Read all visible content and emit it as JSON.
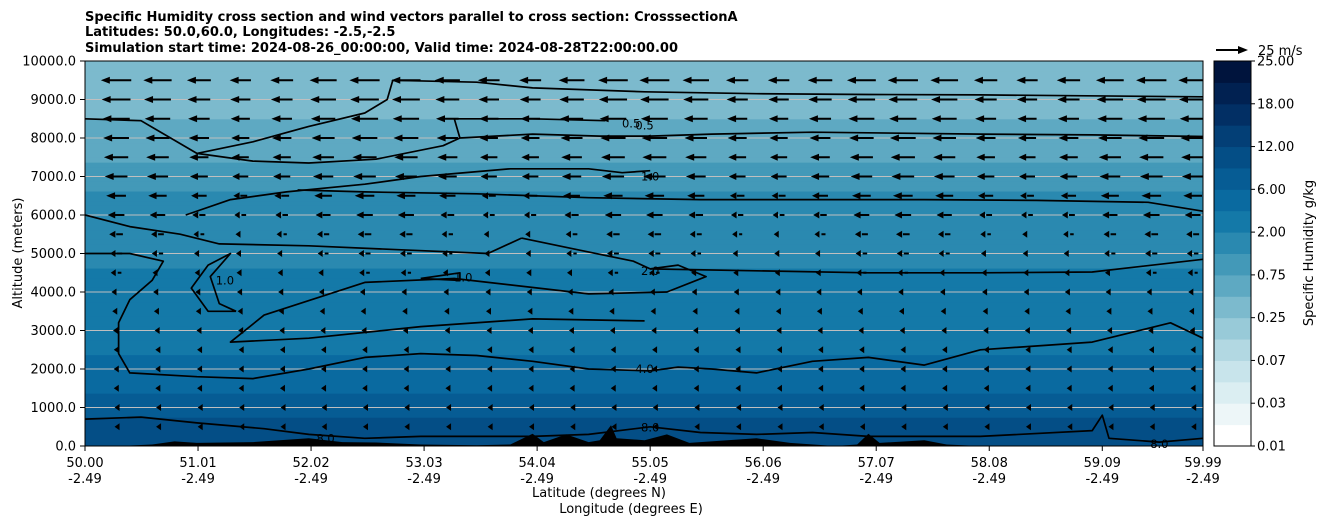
{
  "chart_data": {
    "type": "heatmap",
    "title_lines": [
      "Specific Humidity cross section and wind vectors parallel to cross section: CrosssectionA",
      "Latitudes: 50.0,60.0, Longitudes: -2.5,-2.5",
      "Simulation start time: 2024-08-26_00:00:00, Valid time: 2024-08-28T22:00:00.00"
    ],
    "ylabel": "Altitude (meters)",
    "xlabel_lines": [
      "Latitude (degrees N)",
      "Longitude (degrees E)"
    ],
    "ylim": [
      0,
      10000
    ],
    "y_ticks": [
      "0.0",
      "1000.0",
      "2000.0",
      "3000.0",
      "4000.0",
      "5000.0",
      "6000.0",
      "7000.0",
      "8000.0",
      "9000.0",
      "10000.0"
    ],
    "y_tick_values": [
      0,
      1000,
      2000,
      3000,
      4000,
      5000,
      6000,
      7000,
      8000,
      9000,
      10000
    ],
    "x_range": [
      50.0,
      59.99
    ],
    "x_ticks": [
      {
        "lat": "50.00",
        "lon": "-2.49",
        "value": 50.0
      },
      {
        "lat": "51.01",
        "lon": "-2.49",
        "value": 51.01
      },
      {
        "lat": "52.02",
        "lon": "-2.49",
        "value": 52.02
      },
      {
        "lat": "53.03",
        "lon": "-2.49",
        "value": 53.03
      },
      {
        "lat": "54.04",
        "lon": "-2.49",
        "value": 54.04
      },
      {
        "lat": "55.05",
        "lon": "-2.49",
        "value": 55.05
      },
      {
        "lat": "56.06",
        "lon": "-2.49",
        "value": 56.06
      },
      {
        "lat": "57.07",
        "lon": "-2.49",
        "value": 57.07
      },
      {
        "lat": "58.08",
        "lon": "-2.49",
        "value": 58.08
      },
      {
        "lat": "59.09",
        "lon": "-2.49",
        "value": 59.09
      },
      {
        "lat": "59.99",
        "lon": "-2.49",
        "value": 59.99
      }
    ],
    "grid": "horizontal",
    "colorbar": {
      "label": "Specific Humidity g/kg",
      "tick_labels": [
        "0.01",
        "0.03",
        "0.07",
        "0.25",
        "0.75",
        "2.00",
        "6.00",
        "12.00",
        "18.00",
        "25.00"
      ],
      "levels": [
        0.01,
        0.02,
        0.03,
        0.05,
        0.07,
        0.1,
        0.25,
        0.5,
        0.75,
        1.0,
        2.0,
        4.0,
        6.0,
        8.0,
        12.0,
        15.0,
        18.0,
        21.0,
        25.0
      ],
      "colors": [
        "#ffffff",
        "#edf6f8",
        "#dbeef2",
        "#c8e4eb",
        "#b2d8e2",
        "#98cad8",
        "#7cbacd",
        "#5ea9c2",
        "#4399b8",
        "#2a89b0",
        "#1479a8",
        "#0a6aa0",
        "#065c94",
        "#044e86",
        "#033f76",
        "#022f64",
        "#012151",
        "#00143d"
      ]
    },
    "quiver_key": {
      "label": "25 m/s",
      "value": 25
    },
    "humidity_profile": [
      {
        "altitude": 0,
        "value": 11.0
      },
      {
        "altitude": 1000,
        "value": 7.0
      },
      {
        "altitude": 2000,
        "value": 4.5
      },
      {
        "altitude": 3000,
        "value": 3.2
      },
      {
        "altitude": 4000,
        "value": 2.4
      },
      {
        "altitude": 5000,
        "value": 1.8
      },
      {
        "altitude": 6000,
        "value": 1.3
      },
      {
        "altitude": 7000,
        "value": 0.85
      },
      {
        "altitude": 8000,
        "value": 0.6
      },
      {
        "altitude": 9000,
        "value": 0.4
      },
      {
        "altitude": 10000,
        "value": 0.3
      }
    ],
    "contours": [
      {
        "level": "0.5",
        "points": [
          [
            50.0,
            8500
          ],
          [
            50.5,
            8450
          ],
          [
            51.0,
            7600
          ],
          [
            51.5,
            7400
          ],
          [
            52.0,
            7350
          ],
          [
            52.6,
            7450
          ],
          [
            53.2,
            7800
          ],
          [
            53.35,
            8000
          ],
          [
            54.0,
            8100
          ],
          [
            54.6,
            8050
          ],
          [
            55.05,
            8050
          ],
          [
            55.6,
            8100
          ],
          [
            56.5,
            8150
          ],
          [
            58.0,
            8100
          ],
          [
            59.0,
            8080
          ],
          [
            59.99,
            8040
          ]
        ]
      },
      {
        "level": "0.5",
        "points": [
          [
            53.35,
            8000
          ],
          [
            53.3,
            8500
          ],
          [
            54.0,
            8500
          ],
          [
            54.65,
            8450
          ]
        ]
      },
      {
        "level": "0.5",
        "points": [
          [
            51.0,
            7600
          ],
          [
            51.5,
            7900
          ],
          [
            52.0,
            8300
          ],
          [
            52.5,
            8650
          ],
          [
            52.7,
            9000
          ],
          [
            52.75,
            9500
          ],
          [
            53.5,
            9450
          ],
          [
            54.0,
            9300
          ],
          [
            55.0,
            9200
          ],
          [
            56.0,
            9150
          ],
          [
            57.0,
            9130
          ],
          [
            58.0,
            9120
          ],
          [
            59.99,
            9070
          ]
        ]
      },
      {
        "level": "1.0",
        "points": [
          [
            50.9,
            6000
          ],
          [
            51.3,
            6400
          ],
          [
            51.8,
            6600
          ],
          [
            52.5,
            6800
          ],
          [
            53.0,
            7000
          ],
          [
            53.8,
            7200
          ],
          [
            54.5,
            7200
          ],
          [
            54.8,
            7100
          ],
          [
            55.05,
            7150
          ]
        ]
      },
      {
        "level": "1.0",
        "points": [
          [
            51.9,
            6650
          ],
          [
            52.5,
            6600
          ],
          [
            53.5,
            6550
          ],
          [
            54.5,
            6450
          ],
          [
            55.5,
            6400
          ],
          [
            56.5,
            6400
          ],
          [
            57.5,
            6400
          ],
          [
            58.5,
            6380
          ],
          [
            59.5,
            6330
          ],
          [
            59.99,
            6100
          ]
        ]
      },
      {
        "level": "1.0",
        "points": [
          [
            51.35,
            3500
          ],
          [
            51.1,
            3500
          ],
          [
            50.95,
            4100
          ],
          [
            51.1,
            4700
          ],
          [
            51.3,
            5000
          ],
          [
            51.12,
            4400
          ],
          [
            51.2,
            3700
          ],
          [
            51.35,
            3500
          ]
        ]
      },
      {
        "level": "1.0",
        "points": [
          [
            53.0,
            4350
          ],
          [
            53.35,
            4500
          ],
          [
            53.35,
            4300
          ],
          [
            53.0,
            4350
          ]
        ]
      },
      {
        "level": "2.0",
        "points": [
          [
            50.0,
            6000
          ],
          [
            50.4,
            5700
          ],
          [
            50.85,
            5500
          ],
          [
            51.2,
            5250
          ],
          [
            52.0,
            5200
          ],
          [
            52.8,
            5100
          ],
          [
            53.6,
            5000
          ],
          [
            53.9,
            5400
          ]
        ]
      },
      {
        "level": "2.0",
        "points": [
          [
            53.9,
            5400
          ],
          [
            54.4,
            5100
          ],
          [
            54.9,
            4800
          ],
          [
            55.05,
            4600
          ],
          [
            55.3,
            4700
          ],
          [
            55.55,
            4400
          ],
          [
            55.2,
            4000
          ],
          [
            54.5,
            3950
          ],
          [
            53.3,
            4350
          ],
          [
            52.5,
            4250
          ],
          [
            51.6,
            3400
          ],
          [
            51.3,
            2700
          ],
          [
            52.0,
            2800
          ],
          [
            53.0,
            3100
          ],
          [
            54.0,
            3300
          ],
          [
            55.0,
            3250
          ]
        ]
      },
      {
        "level": "2.0",
        "points": [
          [
            55.05,
            4600
          ],
          [
            56.0,
            4550
          ],
          [
            57.0,
            4500
          ],
          [
            58.0,
            4500
          ],
          [
            59.0,
            4520
          ],
          [
            59.99,
            4850
          ]
        ]
      },
      {
        "level": "4.0",
        "points": [
          [
            50.0,
            5000
          ],
          [
            50.4,
            5000
          ],
          [
            50.7,
            4800
          ],
          [
            50.6,
            4300
          ],
          [
            50.4,
            3800
          ],
          [
            50.3,
            3200
          ],
          [
            50.3,
            2400
          ],
          [
            50.4,
            1900
          ],
          [
            51.0,
            1800
          ],
          [
            51.5,
            1750
          ],
          [
            52.0,
            2000
          ],
          [
            52.5,
            2300
          ],
          [
            53.0,
            2400
          ],
          [
            53.5,
            2350
          ],
          [
            54.0,
            2200
          ],
          [
            54.5,
            2000
          ],
          [
            55.05,
            1950
          ],
          [
            55.3,
            2050
          ],
          [
            55.6,
            2000
          ],
          [
            56.0,
            1900
          ],
          [
            56.5,
            2200
          ],
          [
            57.0,
            2300
          ],
          [
            57.5,
            2100
          ],
          [
            58.0,
            2500
          ],
          [
            59.0,
            2700
          ],
          [
            59.7,
            3200
          ],
          [
            59.99,
            2800
          ]
        ]
      },
      {
        "level": "8.0",
        "points": [
          [
            50.0,
            700
          ],
          [
            50.5,
            750
          ],
          [
            51.0,
            600
          ],
          [
            51.6,
            450
          ],
          [
            52.0,
            300
          ],
          [
            52.5,
            200
          ],
          [
            53.0,
            250
          ],
          [
            54.0,
            250
          ],
          [
            54.5,
            300
          ],
          [
            55.05,
            500
          ],
          [
            55.5,
            350
          ],
          [
            56.0,
            300
          ],
          [
            56.5,
            350
          ],
          [
            57.0,
            250
          ],
          [
            58.0,
            250
          ],
          [
            59.0,
            400
          ],
          [
            59.09,
            800
          ],
          [
            59.15,
            200
          ],
          [
            59.6,
            100
          ],
          [
            59.99,
            200
          ]
        ]
      }
    ],
    "contour_labels": [
      {
        "text": "0.5",
        "x": 54.88,
        "y": 8380
      },
      {
        "text": "0.5",
        "x": 55.0,
        "y": 8330
      },
      {
        "text": "1.0",
        "x": 55.05,
        "y": 7000
      },
      {
        "text": "1.0",
        "x": 51.25,
        "y": 4300
      },
      {
        "text": "1.0",
        "x": 53.38,
        "y": 4380
      },
      {
        "text": "2.0",
        "x": 55.05,
        "y": 4550
      },
      {
        "text": "4.0",
        "x": 55.0,
        "y": 2000
      },
      {
        "text": "8.0",
        "x": 55.05,
        "y": 480
      },
      {
        "text": "8.0",
        "x": 52.15,
        "y": 200
      },
      {
        "text": "8.0",
        "x": 59.6,
        "y": 50
      }
    ],
    "terrain": [
      [
        50.0,
        0
      ],
      [
        50.3,
        0
      ],
      [
        50.6,
        40
      ],
      [
        50.8,
        120
      ],
      [
        51.0,
        80
      ],
      [
        51.5,
        100
      ],
      [
        52.0,
        200
      ],
      [
        52.3,
        100
      ],
      [
        52.6,
        90
      ],
      [
        53.0,
        40
      ],
      [
        53.5,
        20
      ],
      [
        53.8,
        40
      ],
      [
        54.0,
        320
      ],
      [
        54.1,
        100
      ],
      [
        54.3,
        300
      ],
      [
        54.5,
        100
      ],
      [
        54.6,
        150
      ],
      [
        54.7,
        540
      ],
      [
        54.75,
        200
      ],
      [
        55.0,
        150
      ],
      [
        55.2,
        300
      ],
      [
        55.4,
        80
      ],
      [
        56.0,
        200
      ],
      [
        56.3,
        80
      ],
      [
        56.7,
        0
      ],
      [
        56.9,
        40
      ],
      [
        57.0,
        320
      ],
      [
        57.1,
        80
      ],
      [
        57.5,
        150
      ],
      [
        57.7,
        40
      ],
      [
        58.0,
        0
      ],
      [
        59.99,
        0
      ]
    ],
    "wind_rows": [
      {
        "altitude": 9500,
        "u": -20
      },
      {
        "altitude": 9000,
        "u": -19
      },
      {
        "altitude": 8500,
        "u": -18
      },
      {
        "altitude": 8000,
        "u": -17
      },
      {
        "altitude": 7500,
        "u": -16
      },
      {
        "altitude": 7000,
        "u": -15
      },
      {
        "altitude": 6500,
        "u": -13
      },
      {
        "altitude": 6000,
        "u": -11
      },
      {
        "altitude": 5500,
        "u": -9
      },
      {
        "altitude": 5000,
        "u": -8
      },
      {
        "altitude": 4500,
        "u": -7
      },
      {
        "altitude": 4000,
        "u": -6
      },
      {
        "altitude": 3500,
        "u": -5
      },
      {
        "altitude": 3000,
        "u": -4
      },
      {
        "altitude": 2500,
        "u": -3
      },
      {
        "altitude": 2000,
        "u": -3
      },
      {
        "altitude": 1500,
        "u": -3
      },
      {
        "altitude": 1000,
        "u": -2
      },
      {
        "altitude": 500,
        "u": -2
      }
    ],
    "wind_columns": 27
  }
}
